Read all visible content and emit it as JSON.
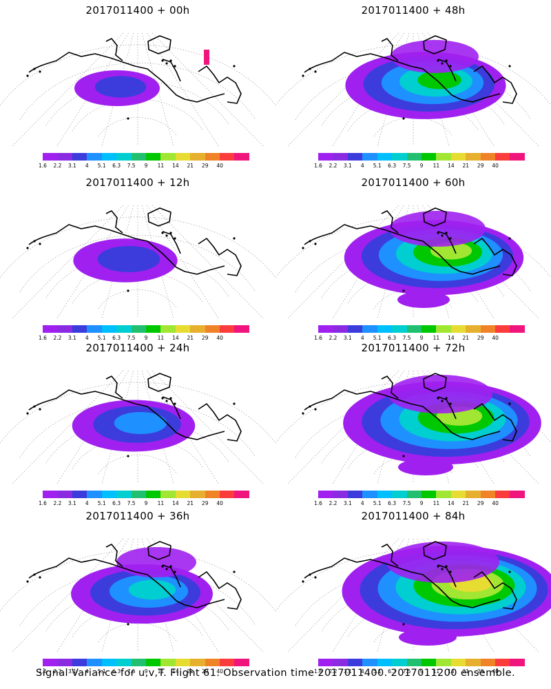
{
  "panels": [
    {
      "title": "2017011400  +  00h",
      "level": 0
    },
    {
      "title": "2017011400  +  48h",
      "level": 4
    },
    {
      "title": "2017011400  +  12h",
      "level": 1
    },
    {
      "title": "2017011400  +  60h",
      "level": 5
    },
    {
      "title": "2017011400  +  24h",
      "level": 2
    },
    {
      "title": "2017011400  +  72h",
      "level": 6
    },
    {
      "title": "2017011400  +  36h",
      "level": 3
    },
    {
      "title": "2017011400  +  84h",
      "level": 7
    }
  ],
  "colorbar": {
    "colors": [
      "#a020f0",
      "#8a2be2",
      "#3c3cdc",
      "#1e90ff",
      "#00bfff",
      "#00ced1",
      "#20c070",
      "#00c800",
      "#a0e632",
      "#e6dc32",
      "#e6af2d",
      "#f08228",
      "#fa3c3c",
      "#f0147d"
    ],
    "labels": [
      "1.6",
      "2.2",
      "3.1",
      "4",
      "5.1",
      "6.3",
      "7.5",
      "9",
      "11",
      "14",
      "21",
      "29",
      "40"
    ]
  },
  "caption": "Signal Variance for u,v,T. Flight 61. Observation time 2017011400. 2017011200 ensemble."
}
